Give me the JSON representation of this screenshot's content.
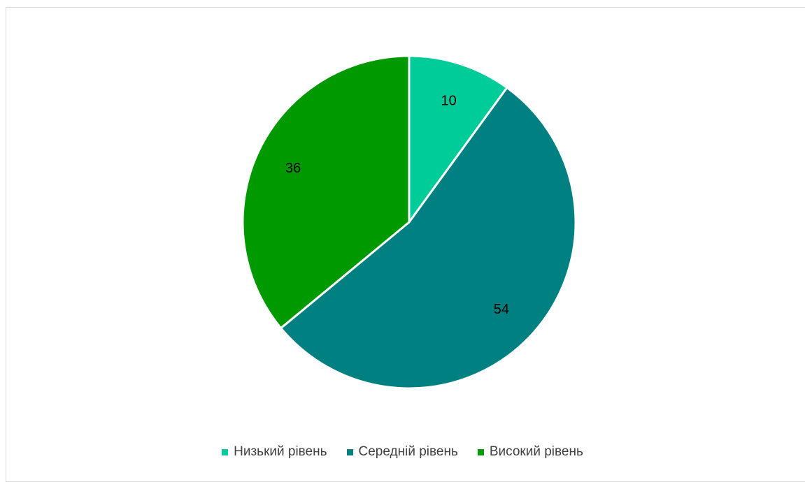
{
  "chart_data": {
    "type": "pie",
    "categories": [
      "Низький рівень",
      "Середній рівень",
      "Високий рівень"
    ],
    "values": [
      10,
      54,
      36
    ],
    "colors": [
      "#00cc99",
      "#008080",
      "#009900"
    ],
    "data_labels": [
      "10",
      "54",
      "36"
    ],
    "legend_position": "bottom",
    "title": ""
  }
}
